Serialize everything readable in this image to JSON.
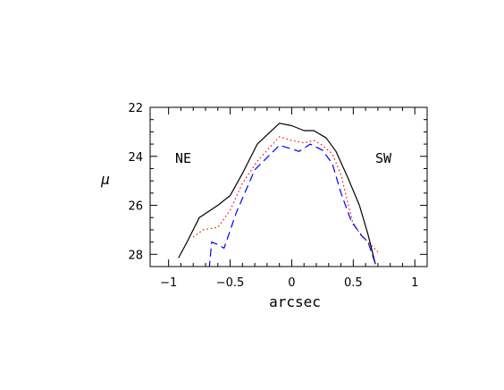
{
  "chart_data": {
    "type": "line",
    "title": "",
    "xlabel": "arcsec",
    "ylabel": "μ",
    "xlim": [
      -1.15,
      1.1
    ],
    "ylim": [
      28.5,
      22
    ],
    "y_inverted": true,
    "grid": false,
    "legend": "none",
    "x_major_ticks": [
      -1,
      -0.5,
      0,
      0.5,
      1
    ],
    "x_tick_labels": [
      "−1",
      "−0.5",
      "0",
      "0.5",
      "1"
    ],
    "y_major_ticks": [
      22,
      24,
      26,
      28
    ],
    "y_tick_labels": [
      "22",
      "24",
      "26",
      "28"
    ],
    "annotations": [
      {
        "text": "NE",
        "x": -0.96,
        "y": 24.1
      },
      {
        "text": "SW",
        "x": 0.79,
        "y": 24.1
      }
    ],
    "series": [
      {
        "style": "solid",
        "color": "#000000",
        "x": [
          -0.92,
          -0.85,
          -0.75,
          -0.6,
          -0.5,
          -0.4,
          -0.28,
          -0.1,
          0.0,
          0.1,
          0.18,
          0.28,
          0.36,
          0.45,
          0.55,
          0.62,
          0.68
        ],
        "y": [
          28.15,
          27.5,
          26.5,
          26.0,
          25.6,
          24.7,
          23.5,
          22.65,
          22.75,
          22.95,
          22.95,
          23.25,
          23.8,
          24.8,
          26.0,
          27.2,
          28.4
        ]
      },
      {
        "style": "dotted",
        "color": "#ff0000",
        "x": [
          -0.8,
          -0.72,
          -0.6,
          -0.5,
          -0.4,
          -0.28,
          -0.1,
          0.0,
          0.1,
          0.18,
          0.25,
          0.33,
          0.4,
          0.5,
          0.6,
          0.7
        ],
        "y": [
          27.3,
          27.0,
          26.9,
          26.2,
          25.1,
          24.2,
          23.2,
          23.35,
          23.45,
          23.35,
          23.55,
          23.9,
          24.75,
          26.8,
          27.4,
          27.9
        ]
      },
      {
        "style": "dashed",
        "color": "#0000ff",
        "x": [
          -0.67,
          -0.65,
          -0.6,
          -0.55,
          -0.45,
          -0.3,
          -0.1,
          0.0,
          0.06,
          0.15,
          0.25,
          0.33,
          0.4,
          0.48,
          0.56,
          0.62,
          0.68
        ],
        "y": [
          28.6,
          27.5,
          27.6,
          27.75,
          26.3,
          24.55,
          23.55,
          23.7,
          23.8,
          23.5,
          23.75,
          24.3,
          25.5,
          26.6,
          27.2,
          27.5,
          28.4
        ]
      }
    ]
  }
}
